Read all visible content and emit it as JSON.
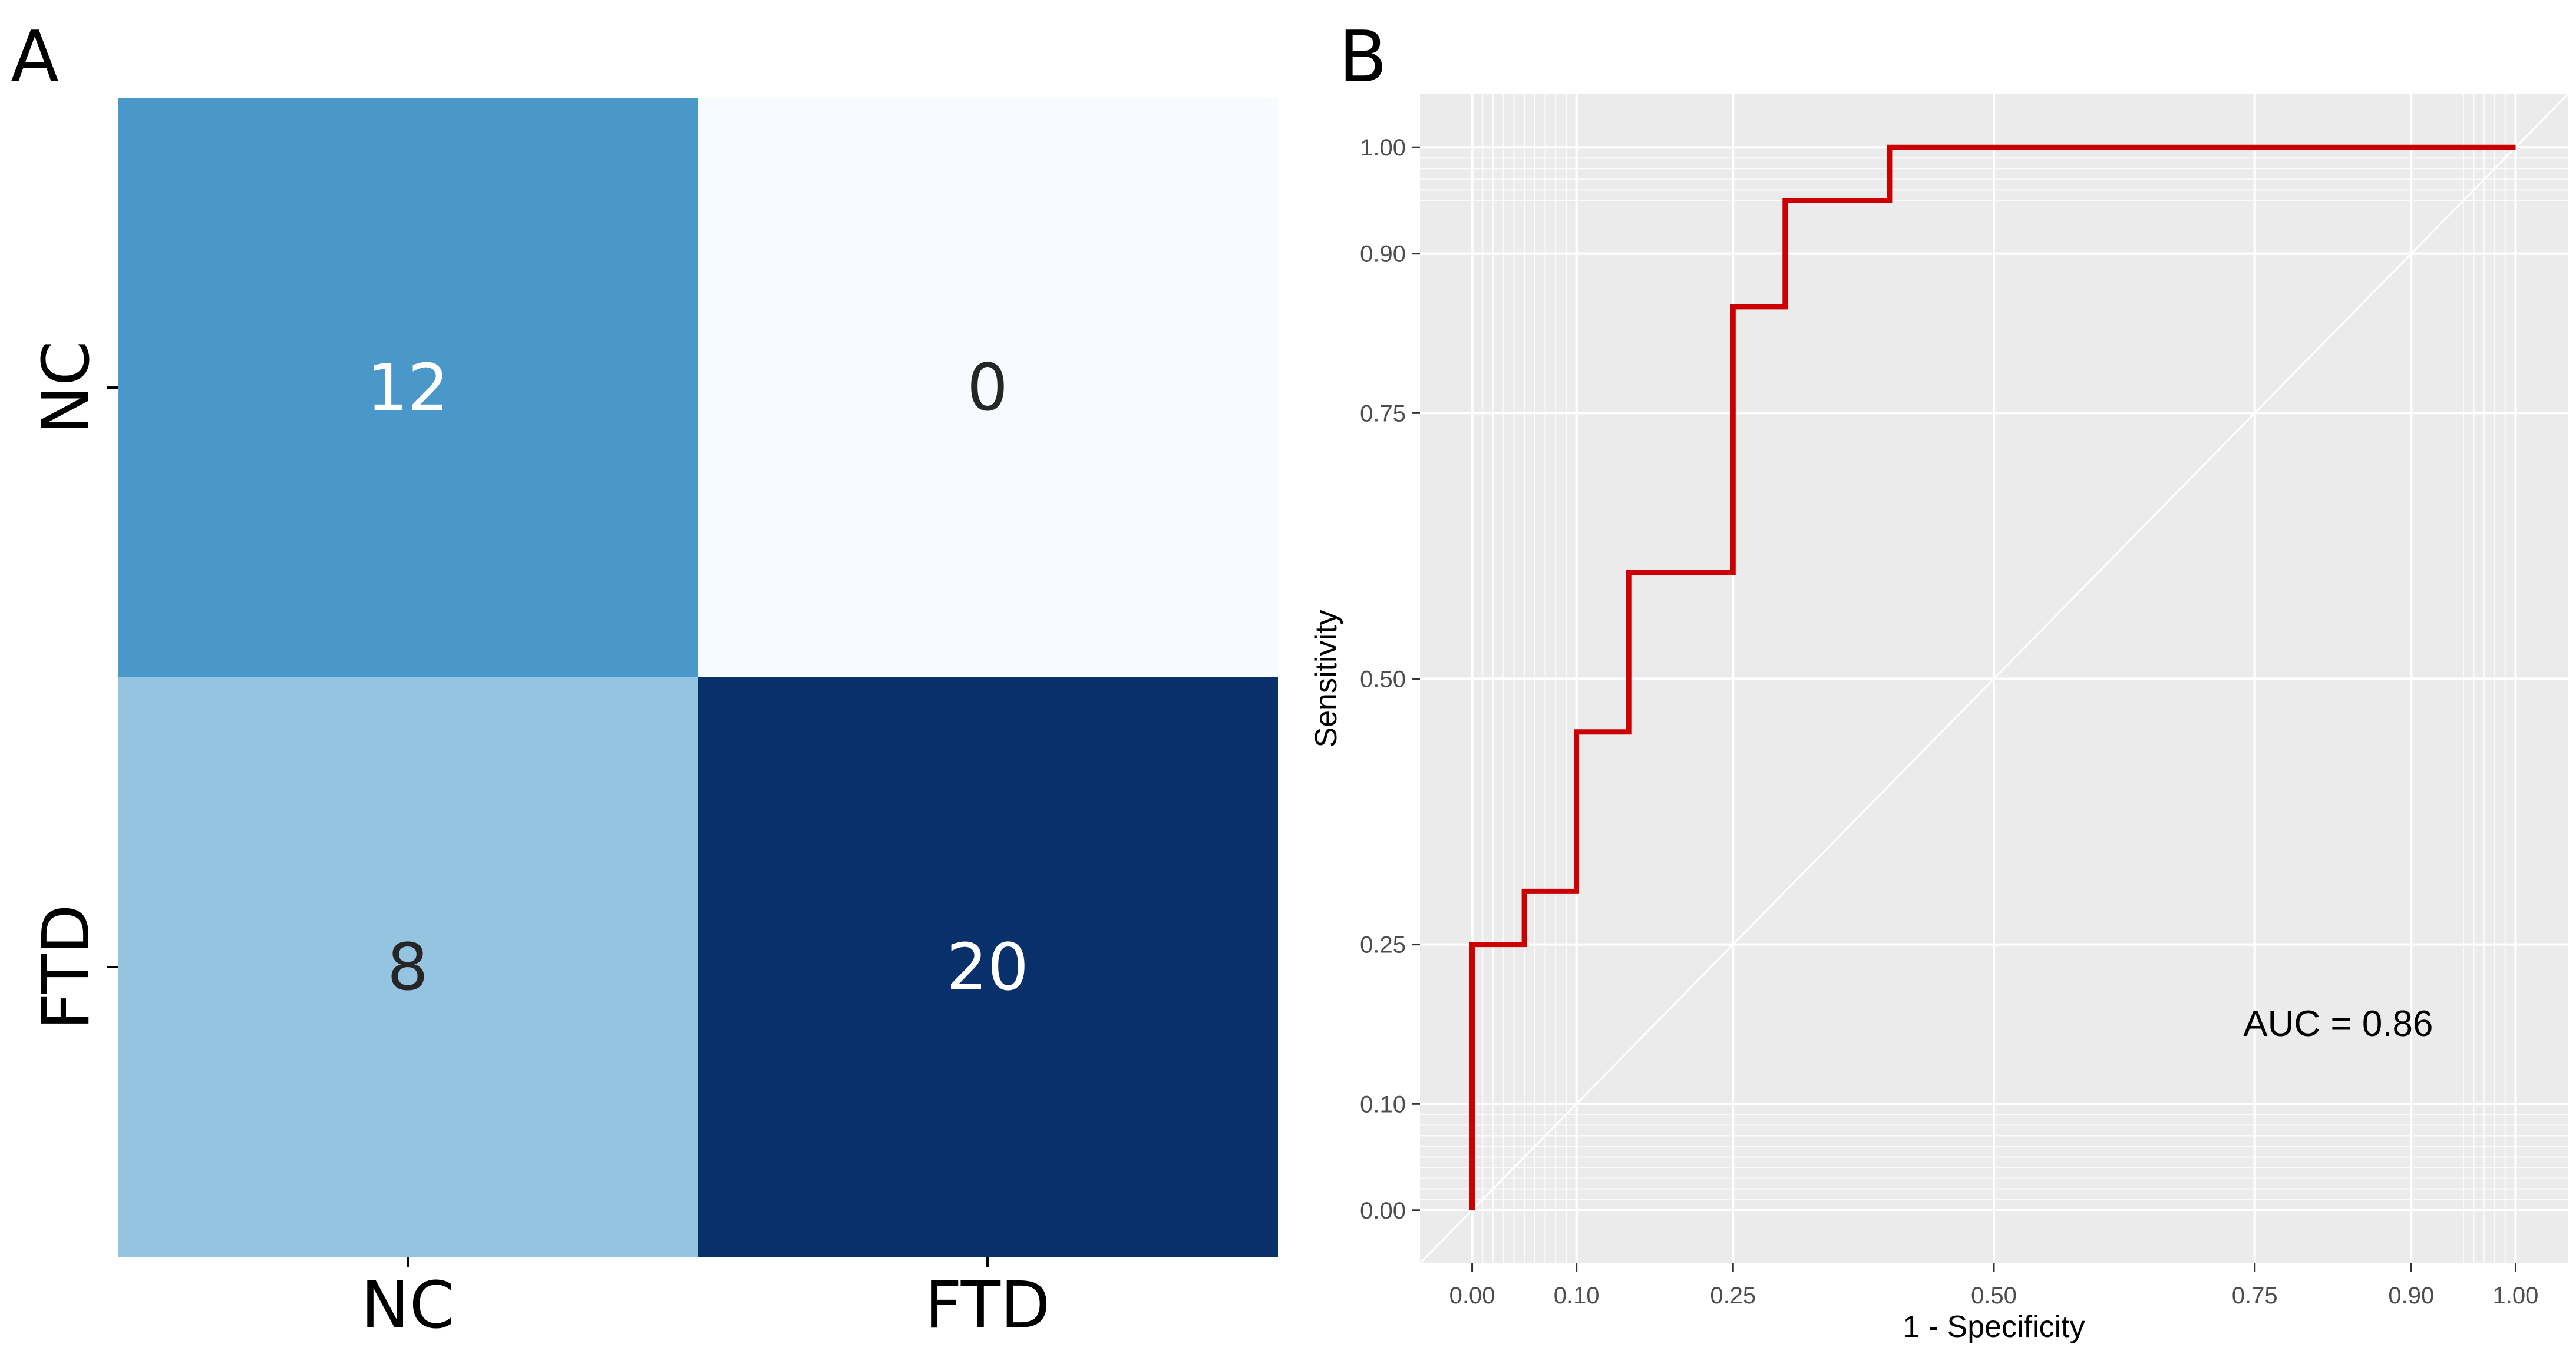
{
  "panels": {
    "a_label": "A",
    "b_label": "B"
  },
  "chart_data": [
    {
      "type": "heatmap",
      "panel": "A",
      "title": "",
      "xlabel": "",
      "ylabel": "",
      "x_categories": [
        "NC",
        "FTD"
      ],
      "y_categories": [
        "NC",
        "FTD"
      ],
      "values": [
        [
          12,
          0
        ],
        [
          8,
          20
        ]
      ],
      "value_labels": [
        [
          "12",
          "0"
        ],
        [
          "8",
          "20"
        ]
      ],
      "colormap": "Blues",
      "value_range": [
        0,
        20
      ],
      "cell_colors": [
        [
          "#4a97c9",
          "#f7fbff"
        ],
        [
          "#94c4df",
          "#08306b"
        ]
      ],
      "label_colors": [
        [
          "#ffffff",
          "#262626"
        ],
        [
          "#262626",
          "#ffffff"
        ]
      ],
      "legend": "none"
    },
    {
      "type": "line",
      "panel": "B",
      "title": "",
      "xlabel": "1 - Specificity",
      "ylabel": "Sensitivity",
      "xlim": [
        -0.05,
        1.05
      ],
      "ylim": [
        -0.05,
        1.05
      ],
      "x_ticks": [
        0.0,
        0.1,
        0.25,
        0.5,
        0.75,
        0.9,
        1.0
      ],
      "x_tick_labels": [
        "0.00",
        "0.10",
        "0.25",
        "0.50",
        "0.75",
        "0.90",
        "1.00"
      ],
      "y_ticks": [
        0.0,
        0.1,
        0.25,
        0.5,
        0.75,
        0.9,
        1.0
      ],
      "y_tick_labels": [
        "0.00",
        "0.10",
        "0.25",
        "0.50",
        "0.75",
        "0.90",
        "1.00"
      ],
      "minor_grid": [
        0.01,
        0.02,
        0.03,
        0.04,
        0.05,
        0.06,
        0.07,
        0.08,
        0.09,
        0.95,
        0.96,
        0.97,
        0.98,
        0.99
      ],
      "grid": true,
      "background": "#ebebeb",
      "grid_color": "#ffffff",
      "reference_line": {
        "from": [
          0,
          0
        ],
        "to": [
          1,
          1
        ],
        "color": "#ffffff"
      },
      "series": [
        {
          "color": "#cc0000",
          "step": true,
          "x": [
            0.0,
            0.0,
            0.05,
            0.05,
            0.1,
            0.1,
            0.15,
            0.15,
            0.25,
            0.25,
            0.3,
            0.3,
            0.4,
            0.4,
            1.0
          ],
          "y": [
            0.0,
            0.25,
            0.25,
            0.3,
            0.3,
            0.45,
            0.45,
            0.6,
            0.6,
            0.85,
            0.85,
            0.95,
            0.95,
            1.0,
            1.0
          ]
        }
      ],
      "annotations": [
        {
          "text": "AUC = 0.86",
          "x": 0.83,
          "y": 0.175
        }
      ],
      "legend": "none"
    }
  ]
}
